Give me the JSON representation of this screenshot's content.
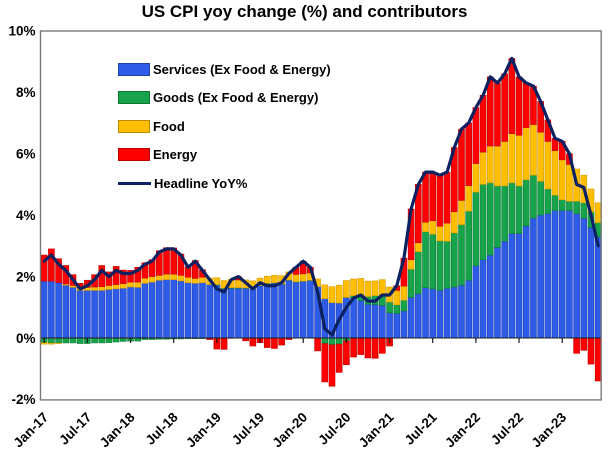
{
  "title": "US CPI yoy change (%) and contributors",
  "chart_data": {
    "type": "bar",
    "stacked": true,
    "grid": false,
    "legend_position": "upper-left-inside",
    "title": "US CPI yoy change (%) and contributors",
    "xlabel": "",
    "ylabel": "",
    "ylim": [
      -2,
      10
    ],
    "yticks": [
      {
        "value": 10,
        "label": "10%"
      },
      {
        "value": 8,
        "label": "8%"
      },
      {
        "value": 6,
        "label": "6%"
      },
      {
        "value": 4,
        "label": "4%"
      },
      {
        "value": 2,
        "label": "2%"
      },
      {
        "value": 0,
        "label": "0%"
      },
      {
        "value": -2,
        "label": "-2%"
      }
    ],
    "xticks": [
      {
        "index": 0,
        "label": "Jan-17"
      },
      {
        "index": 6,
        "label": "Jul-17"
      },
      {
        "index": 12,
        "label": "Jan-18"
      },
      {
        "index": 18,
        "label": "Jul-18"
      },
      {
        "index": 24,
        "label": "Jan-19"
      },
      {
        "index": 30,
        "label": "Jul-19"
      },
      {
        "index": 36,
        "label": "Jan-20"
      },
      {
        "index": 42,
        "label": "Jul-20"
      },
      {
        "index": 48,
        "label": "Jan-21"
      },
      {
        "index": 54,
        "label": "Jul-21"
      },
      {
        "index": 60,
        "label": "Jan-22"
      },
      {
        "index": 66,
        "label": "Jul-22"
      },
      {
        "index": 72,
        "label": "Jan-23"
      }
    ],
    "x_labels": [
      "Jan-17",
      "Feb-17",
      "Mar-17",
      "Apr-17",
      "May-17",
      "Jun-17",
      "Jul-17",
      "Aug-17",
      "Sep-17",
      "Oct-17",
      "Nov-17",
      "Dec-17",
      "Jan-18",
      "Feb-18",
      "Mar-18",
      "Apr-18",
      "May-18",
      "Jun-18",
      "Jul-18",
      "Aug-18",
      "Sep-18",
      "Oct-18",
      "Nov-18",
      "Dec-18",
      "Jan-19",
      "Feb-19",
      "Mar-19",
      "Apr-19",
      "May-19",
      "Jun-19",
      "Jul-19",
      "Aug-19",
      "Sep-19",
      "Oct-19",
      "Nov-19",
      "Dec-19",
      "Jan-20",
      "Feb-20",
      "Mar-20",
      "Apr-20",
      "May-20",
      "Jun-20",
      "Jul-20",
      "Aug-20",
      "Sep-20",
      "Oct-20",
      "Nov-20",
      "Dec-20",
      "Jan-21",
      "Feb-21",
      "Mar-21",
      "Apr-21",
      "May-21",
      "Jun-21",
      "Jul-21",
      "Aug-21",
      "Sep-21",
      "Oct-21",
      "Nov-21",
      "Dec-21",
      "Jan-22",
      "Feb-22",
      "Mar-22",
      "Apr-22",
      "May-22",
      "Jun-22",
      "Jul-22",
      "Aug-22",
      "Sep-22",
      "Oct-22",
      "Nov-22",
      "Dec-22",
      "Jan-23",
      "Feb-23",
      "Mar-23",
      "Apr-23",
      "May-23",
      "Jun-23"
    ],
    "series": [
      {
        "id": "services",
        "name": "Services (Ex Food & Energy)",
        "kind": "bar",
        "color": "#2E5CE6",
        "edge": "#1E45C0",
        "values": [
          1.85,
          1.85,
          1.8,
          1.72,
          1.65,
          1.55,
          1.55,
          1.55,
          1.55,
          1.58,
          1.6,
          1.62,
          1.66,
          1.65,
          1.78,
          1.82,
          1.88,
          1.9,
          1.9,
          1.86,
          1.8,
          1.78,
          1.8,
          1.74,
          1.72,
          1.6,
          1.62,
          1.62,
          1.62,
          1.6,
          1.7,
          1.77,
          1.79,
          1.75,
          1.88,
          1.82,
          1.84,
          1.87,
          1.67,
          1.28,
          1.15,
          1.14,
          1.32,
          1.3,
          1.22,
          1.1,
          1.09,
          1.06,
          0.82,
          0.8,
          0.88,
          1.32,
          1.44,
          1.64,
          1.6,
          1.55,
          1.62,
          1.66,
          1.72,
          1.88,
          2.35,
          2.55,
          2.7,
          2.95,
          3.15,
          3.4,
          3.4,
          3.65,
          3.9,
          4.0,
          4.05,
          4.15,
          4.15,
          4.15,
          4.05,
          3.9,
          3.6,
          3.3
        ]
      },
      {
        "id": "goods",
        "name": "Goods (Ex Food & Energy)",
        "kind": "bar",
        "color": "#17A34A",
        "edge": "#0E7F38",
        "values": [
          -0.15,
          -0.17,
          -0.17,
          -0.16,
          -0.16,
          -0.18,
          -0.18,
          -0.16,
          -0.16,
          -0.15,
          -0.13,
          -0.11,
          -0.1,
          -0.1,
          -0.05,
          -0.05,
          -0.04,
          -0.04,
          -0.03,
          -0.03,
          -0.02,
          -0.02,
          -0.02,
          -0.02,
          0.02,
          0.02,
          0.02,
          0.02,
          0.01,
          0.01,
          0.01,
          0.01,
          0.01,
          0.01,
          0.01,
          0.01,
          0.01,
          0.01,
          -0.01,
          -0.18,
          -0.22,
          -0.2,
          -0.09,
          0.08,
          0.2,
          0.25,
          0.29,
          0.35,
          0.35,
          0.28,
          0.35,
          0.92,
          1.37,
          1.82,
          1.78,
          1.61,
          1.53,
          1.76,
          1.97,
          2.25,
          2.4,
          2.45,
          2.35,
          2.0,
          1.8,
          1.65,
          1.55,
          1.5,
          1.4,
          1.1,
          0.8,
          0.5,
          0.35,
          0.3,
          0.4,
          0.5,
          0.5,
          0.45
        ]
      },
      {
        "id": "food",
        "name": "Food",
        "kind": "bar",
        "color": "#FFBF00",
        "edge": "#D79C00",
        "values": [
          -0.05,
          -0.03,
          -0.01,
          0.04,
          0.06,
          0.08,
          0.1,
          0.11,
          0.12,
          0.13,
          0.14,
          0.15,
          0.16,
          0.17,
          0.17,
          0.18,
          0.16,
          0.18,
          0.18,
          0.18,
          0.18,
          0.16,
          0.18,
          0.21,
          0.22,
          0.25,
          0.27,
          0.25,
          0.26,
          0.25,
          0.24,
          0.23,
          0.24,
          0.27,
          0.26,
          0.24,
          0.24,
          0.24,
          0.25,
          0.45,
          0.52,
          0.58,
          0.55,
          0.54,
          0.52,
          0.5,
          0.48,
          0.49,
          0.49,
          0.47,
          0.46,
          0.31,
          0.29,
          0.31,
          0.44,
          0.48,
          0.59,
          0.69,
          0.79,
          0.83,
          0.93,
          1.05,
          1.2,
          1.3,
          1.45,
          1.6,
          1.65,
          1.7,
          1.65,
          1.6,
          1.55,
          1.45,
          1.3,
          1.2,
          1.05,
          0.9,
          0.75,
          0.65
        ]
      },
      {
        "id": "energy",
        "name": "Energy",
        "kind": "bar",
        "color": "#FF0000",
        "edge": "#C00000",
        "values": [
          0.85,
          1.05,
          0.78,
          0.6,
          0.35,
          0.15,
          0.23,
          0.4,
          0.69,
          0.44,
          0.59,
          0.44,
          0.38,
          0.48,
          0.5,
          0.55,
          0.8,
          0.86,
          0.85,
          0.69,
          0.34,
          0.58,
          0.24,
          -0.03,
          -0.36,
          -0.37,
          -0.01,
          0.11,
          -0.09,
          -0.26,
          -0.15,
          -0.31,
          -0.34,
          -0.23,
          -0.05,
          0.23,
          0.41,
          0.18,
          -0.41,
          -1.25,
          -1.35,
          -0.92,
          -0.78,
          -0.62,
          -0.54,
          -0.65,
          -0.66,
          -0.5,
          -0.26,
          0.15,
          0.91,
          1.65,
          1.9,
          1.63,
          1.58,
          1.66,
          1.66,
          2.09,
          2.32,
          2.04,
          1.82,
          1.85,
          2.25,
          2.05,
          2.2,
          2.45,
          1.9,
          1.45,
          1.25,
          1.0,
          0.7,
          0.4,
          0.6,
          0.35,
          -0.5,
          -0.4,
          -0.85,
          -1.4
        ]
      },
      {
        "id": "headline",
        "name": "Headline YoY%",
        "kind": "line",
        "color": "#0B2161",
        "values": [
          2.5,
          2.7,
          2.4,
          2.2,
          1.9,
          1.6,
          1.7,
          1.9,
          2.2,
          2.0,
          2.2,
          2.1,
          2.1,
          2.2,
          2.4,
          2.5,
          2.8,
          2.9,
          2.9,
          2.7,
          2.3,
          2.5,
          2.2,
          1.9,
          1.6,
          1.5,
          1.9,
          2.0,
          1.8,
          1.6,
          1.8,
          1.7,
          1.7,
          1.8,
          2.1,
          2.3,
          2.5,
          2.3,
          1.5,
          0.3,
          0.1,
          0.6,
          1.0,
          1.3,
          1.4,
          1.2,
          1.2,
          1.4,
          1.4,
          1.7,
          2.6,
          4.2,
          5.0,
          5.4,
          5.4,
          5.3,
          5.4,
          6.2,
          6.8,
          7.0,
          7.5,
          7.9,
          8.5,
          8.3,
          8.6,
          9.1,
          8.5,
          8.3,
          8.2,
          7.7,
          7.1,
          6.5,
          6.4,
          6.0,
          5.0,
          4.9,
          4.0,
          3.0
        ]
      }
    ],
    "axis_colors": {
      "plot_border": "#7A7A7A",
      "zero_axis": "#1A1A1A",
      "text": "#000000"
    }
  }
}
